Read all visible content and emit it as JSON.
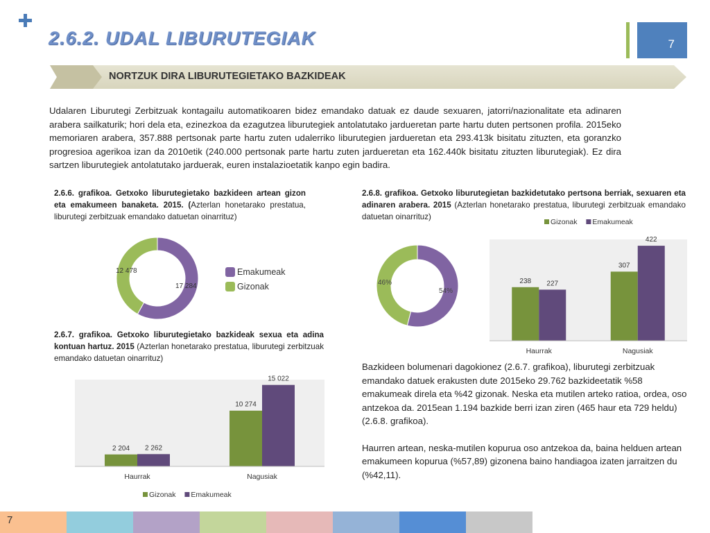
{
  "header": {
    "title": "2.6.2.  UDAL LIBURUTEGIAK",
    "page_number": "7"
  },
  "banner": {
    "text": "NORTZUK DIRA LIBURUTEGIETAKO BAZKIDEAK"
  },
  "intro": "Udalaren Liburutegi Zerbitzuak kontagailu automatikoaren bidez emandako datuak ez daude sexuaren, jatorri/nazionalitate eta adinaren arabera sailkaturik; hori dela eta, ezinezkoa da ezagutzea liburutegiek antolatutako jardueretan parte hartu duten pertsonen profila. 2015eko memoriaren arabera, 357.888 pertsonak parte hartu zuten udalerriko liburutegien jardueretan eta 293.413k bisitatu zituzten, eta goranzko progresioa agerikoa izan da 2010etik (240.000 pertsonak parte hartu zuten jardueretan eta 162.440k bisitatu zituzten liburutegiak). Ez dira sartzen liburutegiek antolatutako jarduerak, euren instalazioetatik kanpo egin badira.",
  "captions": {
    "c1_bold": "2.6.6. grafikoa.  Getxoko liburutegietako bazkideen artean gizon eta emakumeen banaketa. 2015. (",
    "c1_rest": "Azterlan honetarako prestatua, liburutegi zerbitzuak emandako datuetan oinarrituz)",
    "c2_bold": "2.6.7. grafikoa. Getxoko liburutegietako bazkideak sexua eta adina kontuan hartuz. 2015",
    "c2_rest": " (Azterlan honetarako prestatua, liburutegi zerbitzuak emandako datuetan oinarrituz)",
    "c3_bold": "2.6.8. grafikoa. Getxoko liburutegietan bazkidetutako pertsona berriak, sexuaren eta adinaren arabera. 2015",
    "c3_rest": " (Azterlan honetarako prestatua, liburutegi zerbitzuak emandako datuetan oinarrituz)"
  },
  "body": {
    "p1": "Bazkideen bolumenari dagokionez (2.6.7. grafikoa), liburutegi zerbitzuak emandako datuek erakusten dute 2015eko 29.762 bazkideetatik %58 emakumeak direla eta %42 gizonak. Neska eta mutilen arteko ratioa, ordea, oso antzekoa da. 2015ean 1.194 bazkide berri izan ziren (465 haur eta 729 heldu) (2.6.8. grafikoa).",
    "p2": "Haurren artean, neska-mutilen kopurua oso antzekoa da, baina helduen artean emakumeen kopurua (%57,89) gizonena baino handiagoa izaten jarraitzen du (%42,11)."
  },
  "footer": {
    "page_number": "7"
  },
  "colors": {
    "gizonak": "#77933c",
    "emakumeak": "#604a7b",
    "donut_green": "#9bbb59",
    "donut_purple": "#8064a2",
    "strip": [
      "#fac090",
      "#93cddd",
      "#b3a2c7",
      "#c3d69b",
      "#e6b9b8",
      "#95b3d7",
      "#558ed5",
      "#c8c8c8"
    ]
  },
  "chart_data": [
    {
      "id": "2.6.6",
      "type": "pie",
      "labels": [
        "Emakumeak",
        "Gizonak"
      ],
      "values": [
        17284,
        12478
      ],
      "value_labels": [
        "17 284",
        "12 478"
      ],
      "donut": true,
      "legend": "right"
    },
    {
      "id": "2.6.7",
      "type": "bar",
      "categories": [
        "Haurrak",
        "Nagusiak"
      ],
      "series": [
        {
          "name": "Gizonak",
          "values": [
            2204,
            10274
          ],
          "labels": [
            "2 204",
            "10 274"
          ]
        },
        {
          "name": "Emakumeak",
          "values": [
            2262,
            15022
          ],
          "labels": [
            "2 262",
            "15 022"
          ]
        }
      ],
      "ylim": [
        0,
        16000
      ],
      "legend": "bottom"
    },
    {
      "id": "2.6.8-donut",
      "type": "pie",
      "labels": [
        "Emakumeak",
        "Gizonak"
      ],
      "values": [
        54,
        46
      ],
      "value_labels": [
        "54%",
        "46%"
      ],
      "donut": true
    },
    {
      "id": "2.6.8-bars",
      "type": "bar",
      "categories": [
        "Haurrak",
        "Nagusiak"
      ],
      "series": [
        {
          "name": "Gizonak",
          "values": [
            238,
            307
          ],
          "labels": [
            "238",
            "307"
          ]
        },
        {
          "name": "Emakumeak",
          "values": [
            227,
            422
          ],
          "labels": [
            "227",
            "422"
          ]
        }
      ],
      "ylim": [
        0,
        450
      ],
      "legend": "top"
    }
  ]
}
